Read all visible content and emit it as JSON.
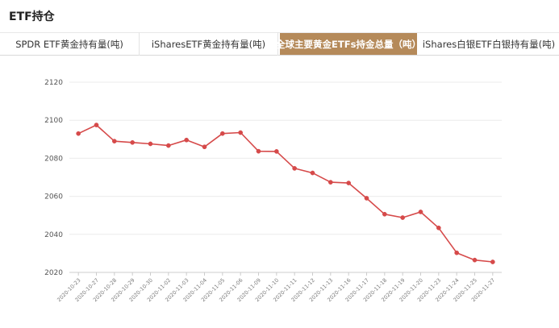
{
  "header": {
    "title": "ETF持仓"
  },
  "tabs": [
    {
      "label": "SPDR ETF黄金持有量(吨)",
      "active": false
    },
    {
      "label": "iSharesETF黄金持有量(吨)",
      "active": false
    },
    {
      "label": "全球主要黄金ETFs持金总量（吨）",
      "active": true
    },
    {
      "label": "iShares白银ETF白银持有量(吨)",
      "active": false
    }
  ],
  "colors": {
    "line": "#d64a4a",
    "active_tab": "#b58a5a",
    "grid": "#ebebeb"
  },
  "chart_data": {
    "type": "line",
    "title": "",
    "xlabel": "",
    "ylabel": "",
    "ylim": [
      2020,
      2120
    ],
    "yticks": [
      2020,
      2040,
      2060,
      2080,
      2100,
      2120
    ],
    "grid": true,
    "categories": [
      "2020-10-23",
      "2020-10-27",
      "2020-10-28",
      "2020-10-29",
      "2020-10-30",
      "2020-11-02",
      "2020-11-03",
      "2020-11-04",
      "2020-11-05",
      "2020-11-06",
      "2020-11-09",
      "2020-11-10",
      "2020-11-11",
      "2020-11-12",
      "2020-11-13",
      "2020-11-16",
      "2020-11-17",
      "2020-11-18",
      "2020-11-19",
      "2020-11-20",
      "2020-11-23",
      "2020-11-24",
      "2020-11-25",
      "2020-11-27"
    ],
    "series": [
      {
        "values": [
          2093,
          2097.5,
          2089,
          2088.3,
          2087.6,
          2086.7,
          2089.6,
          2086,
          2093,
          2093.5,
          2083.7,
          2083.6,
          2074.7,
          2072.3,
          2067.4,
          2067,
          2059,
          2050.6,
          2048.8,
          2051.8,
          2043.4,
          2030.3,
          2026.5,
          2025.5
        ]
      }
    ]
  }
}
